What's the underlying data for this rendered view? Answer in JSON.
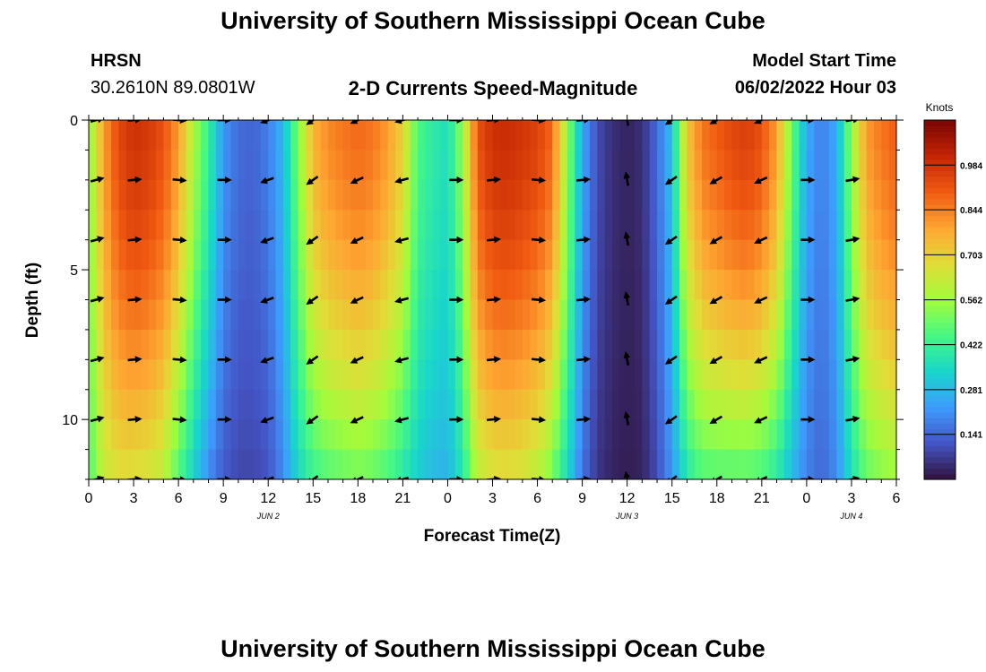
{
  "header": {
    "title": "University of Southern Mississippi Ocean Cube",
    "station": "HRSN",
    "coords": "30.2610N  89.0801W",
    "plot_title": "2-D Currents Speed-Magnitude",
    "model_start_label": "Model Start Time",
    "model_start_value": "06/02/2022 Hour 03",
    "footer_title": "University of Southern Mississippi Ocean Cube"
  },
  "chart_data": {
    "type": "heatmap",
    "title": "2-D Currents Speed-Magnitude",
    "xlabel": "Forecast Time(Z)",
    "ylabel": "Depth (ft)",
    "x_range_hours": [
      0,
      54
    ],
    "y_range_ft": [
      0,
      12
    ],
    "x_ticks": [
      {
        "h": 0,
        "label": "0"
      },
      {
        "h": 3,
        "label": "3"
      },
      {
        "h": 6,
        "label": "6"
      },
      {
        "h": 9,
        "label": "9"
      },
      {
        "h": 12,
        "label": "12"
      },
      {
        "h": 15,
        "label": "15"
      },
      {
        "h": 18,
        "label": "18"
      },
      {
        "h": 21,
        "label": "21"
      },
      {
        "h": 24,
        "label": "0"
      },
      {
        "h": 27,
        "label": "3"
      },
      {
        "h": 30,
        "label": "6"
      },
      {
        "h": 33,
        "label": "9"
      },
      {
        "h": 36,
        "label": "12"
      },
      {
        "h": 39,
        "label": "15"
      },
      {
        "h": 42,
        "label": "18"
      },
      {
        "h": 45,
        "label": "21"
      },
      {
        "h": 48,
        "label": "0"
      },
      {
        "h": 51,
        "label": "3"
      },
      {
        "h": 54,
        "label": "6"
      }
    ],
    "y_ticks": [
      {
        "v": 0,
        "label": "0"
      },
      {
        "v": 5,
        "label": "5"
      },
      {
        "v": 10,
        "label": "10"
      }
    ],
    "date_labels": [
      {
        "h": 12,
        "label": "JUN 2"
      },
      {
        "h": 36,
        "label": "JUN 3"
      },
      {
        "h": 51,
        "label": "JUN 4"
      }
    ],
    "colorbar": {
      "title": "Knots",
      "min": 0,
      "max": 1.125,
      "ticks": [
        "0.141",
        "0.281",
        "0.422",
        "0.562",
        "0.703",
        "0.844",
        "0.984"
      ],
      "colors": [
        "#30123b",
        "#4454c4",
        "#3e9bfe",
        "#18d6cb",
        "#46f884",
        "#a2fc3c",
        "#e1dd37",
        "#fea632",
        "#f05b12",
        "#c42503",
        "#7a0403"
      ]
    },
    "speed_profile_hours": [
      0,
      1,
      2,
      3,
      4,
      5,
      6,
      7,
      8,
      9,
      10,
      11,
      12,
      13,
      14,
      15,
      16,
      17,
      18,
      19,
      20,
      21,
      22,
      23,
      24,
      25,
      26,
      27,
      28,
      29,
      30,
      31,
      32,
      33,
      34,
      35,
      36,
      37,
      38,
      39,
      40,
      41,
      42,
      43,
      44,
      45,
      46,
      47,
      48,
      49,
      50,
      51,
      52,
      53,
      54
    ],
    "surface_speed_knots": [
      0.52,
      0.8,
      0.94,
      0.99,
      0.97,
      0.92,
      0.8,
      0.58,
      0.42,
      0.22,
      0.15,
      0.14,
      0.18,
      0.28,
      0.52,
      0.76,
      0.83,
      0.86,
      0.88,
      0.86,
      0.8,
      0.7,
      0.45,
      0.4,
      0.36,
      0.55,
      0.92,
      0.99,
      1.0,
      0.98,
      0.95,
      0.88,
      0.55,
      0.25,
      0.1,
      0.05,
      0.03,
      0.05,
      0.15,
      0.3,
      0.72,
      0.86,
      0.9,
      0.94,
      0.96,
      0.92,
      0.8,
      0.5,
      0.25,
      0.18,
      0.25,
      0.55,
      0.8,
      0.86,
      0.9
    ],
    "bottom_speed_knots": [
      0.45,
      0.62,
      0.66,
      0.66,
      0.64,
      0.6,
      0.45,
      0.32,
      0.2,
      0.12,
      0.09,
      0.09,
      0.11,
      0.2,
      0.34,
      0.42,
      0.46,
      0.48,
      0.5,
      0.48,
      0.44,
      0.38,
      0.32,
      0.28,
      0.27,
      0.38,
      0.6,
      0.65,
      0.66,
      0.64,
      0.6,
      0.5,
      0.34,
      0.16,
      0.06,
      0.03,
      0.02,
      0.03,
      0.1,
      0.22,
      0.38,
      0.45,
      0.46,
      0.46,
      0.46,
      0.44,
      0.38,
      0.28,
      0.18,
      0.14,
      0.2,
      0.36,
      0.48,
      0.52,
      0.55
    ],
    "vector_hours": [
      0.5,
      3,
      6,
      9,
      12,
      15,
      18,
      21,
      24.5,
      27,
      30,
      33,
      36,
      39,
      42,
      45,
      48,
      51
    ],
    "vector_depths_ft": [
      0,
      2,
      4,
      6,
      8,
      10,
      12
    ],
    "vector_direction_deg": [
      15,
      5,
      355,
      0,
      200,
      215,
      205,
      195,
      0,
      5,
      355,
      5,
      100,
      215,
      210,
      205,
      0,
      10
    ]
  }
}
